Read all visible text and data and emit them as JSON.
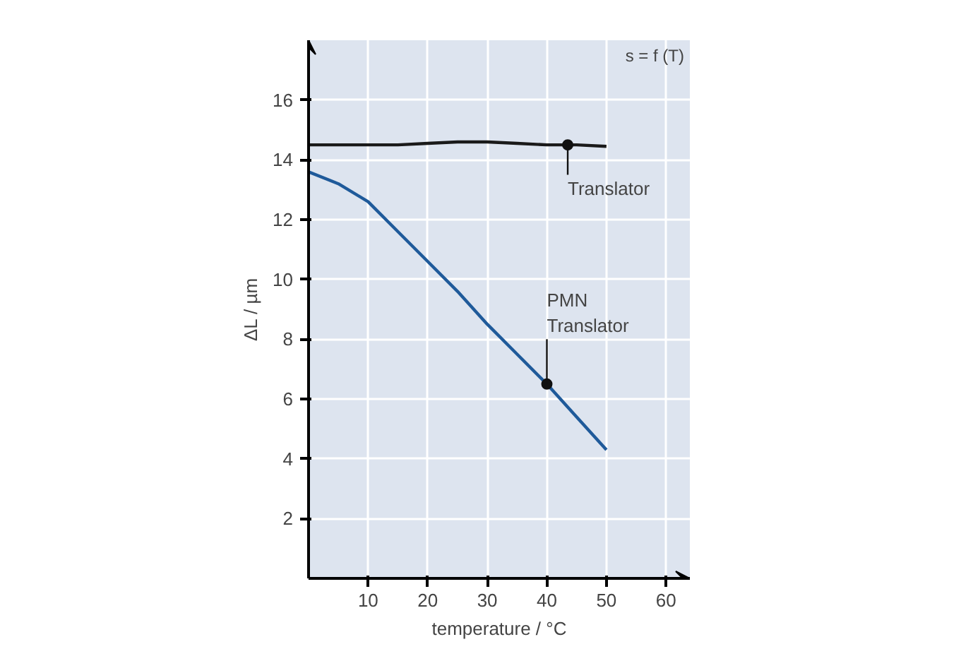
{
  "chart_data": {
    "type": "line",
    "xlabel": "temperature / °C",
    "ylabel": "ΔL / µm",
    "xlim": [
      0,
      64
    ],
    "ylim": [
      0,
      18
    ],
    "xticks": [
      10,
      20,
      30,
      40,
      50,
      60
    ],
    "yticks": [
      2,
      4,
      6,
      8,
      10,
      12,
      14,
      16
    ],
    "grid": true,
    "line_style": "solid",
    "marker": "none",
    "series": [
      {
        "color": "#1a1a1a",
        "x": [
          0,
          5,
          10,
          15,
          20,
          25,
          30,
          35,
          40,
          45,
          50
        ],
        "values": [
          14.5,
          14.5,
          14.5,
          14.5,
          14.55,
          14.6,
          14.6,
          14.55,
          14.5,
          14.5,
          14.45
        ]
      },
      {
        "color": "#1f5a9a",
        "x": [
          0,
          5,
          10,
          15,
          20,
          25,
          30,
          35,
          40,
          45,
          50
        ],
        "values": [
          13.6,
          13.2,
          12.6,
          11.6,
          10.6,
          9.6,
          8.5,
          7.5,
          6.5,
          5.4,
          4.3
        ]
      }
    ],
    "annotations": [
      "s = f (T)",
      {
        "text": "Translator",
        "x": 43.5,
        "y": 14.5
      },
      {
        "text": "PMN\nTranslator",
        "x": 40,
        "y": 6.5
      }
    ]
  }
}
